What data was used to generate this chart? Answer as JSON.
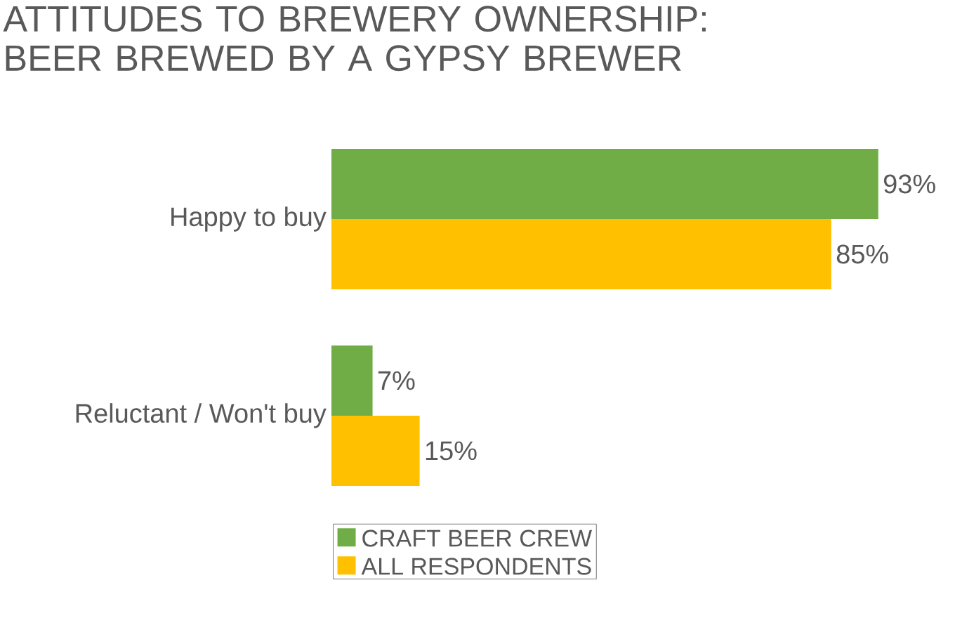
{
  "chart_data": {
    "type": "bar",
    "orientation": "horizontal",
    "title": "ATTITUDES TO BREWERY OWNERSHIP: BEER BREWED BY A GYPSY BREWER",
    "categories": [
      "Happy to buy",
      "Reluctant / Won't buy"
    ],
    "series": [
      {
        "name": "CRAFT BEER CREW",
        "color": "#70ad47",
        "values": [
          93,
          7
        ],
        "value_labels": [
          "93%",
          "7%"
        ]
      },
      {
        "name": "ALL RESPONDENTS",
        "color": "#ffc000",
        "values": [
          85,
          15
        ],
        "value_labels": [
          "85%",
          "15%"
        ]
      }
    ],
    "tick_labels": "y",
    "legend": "bottom"
  }
}
